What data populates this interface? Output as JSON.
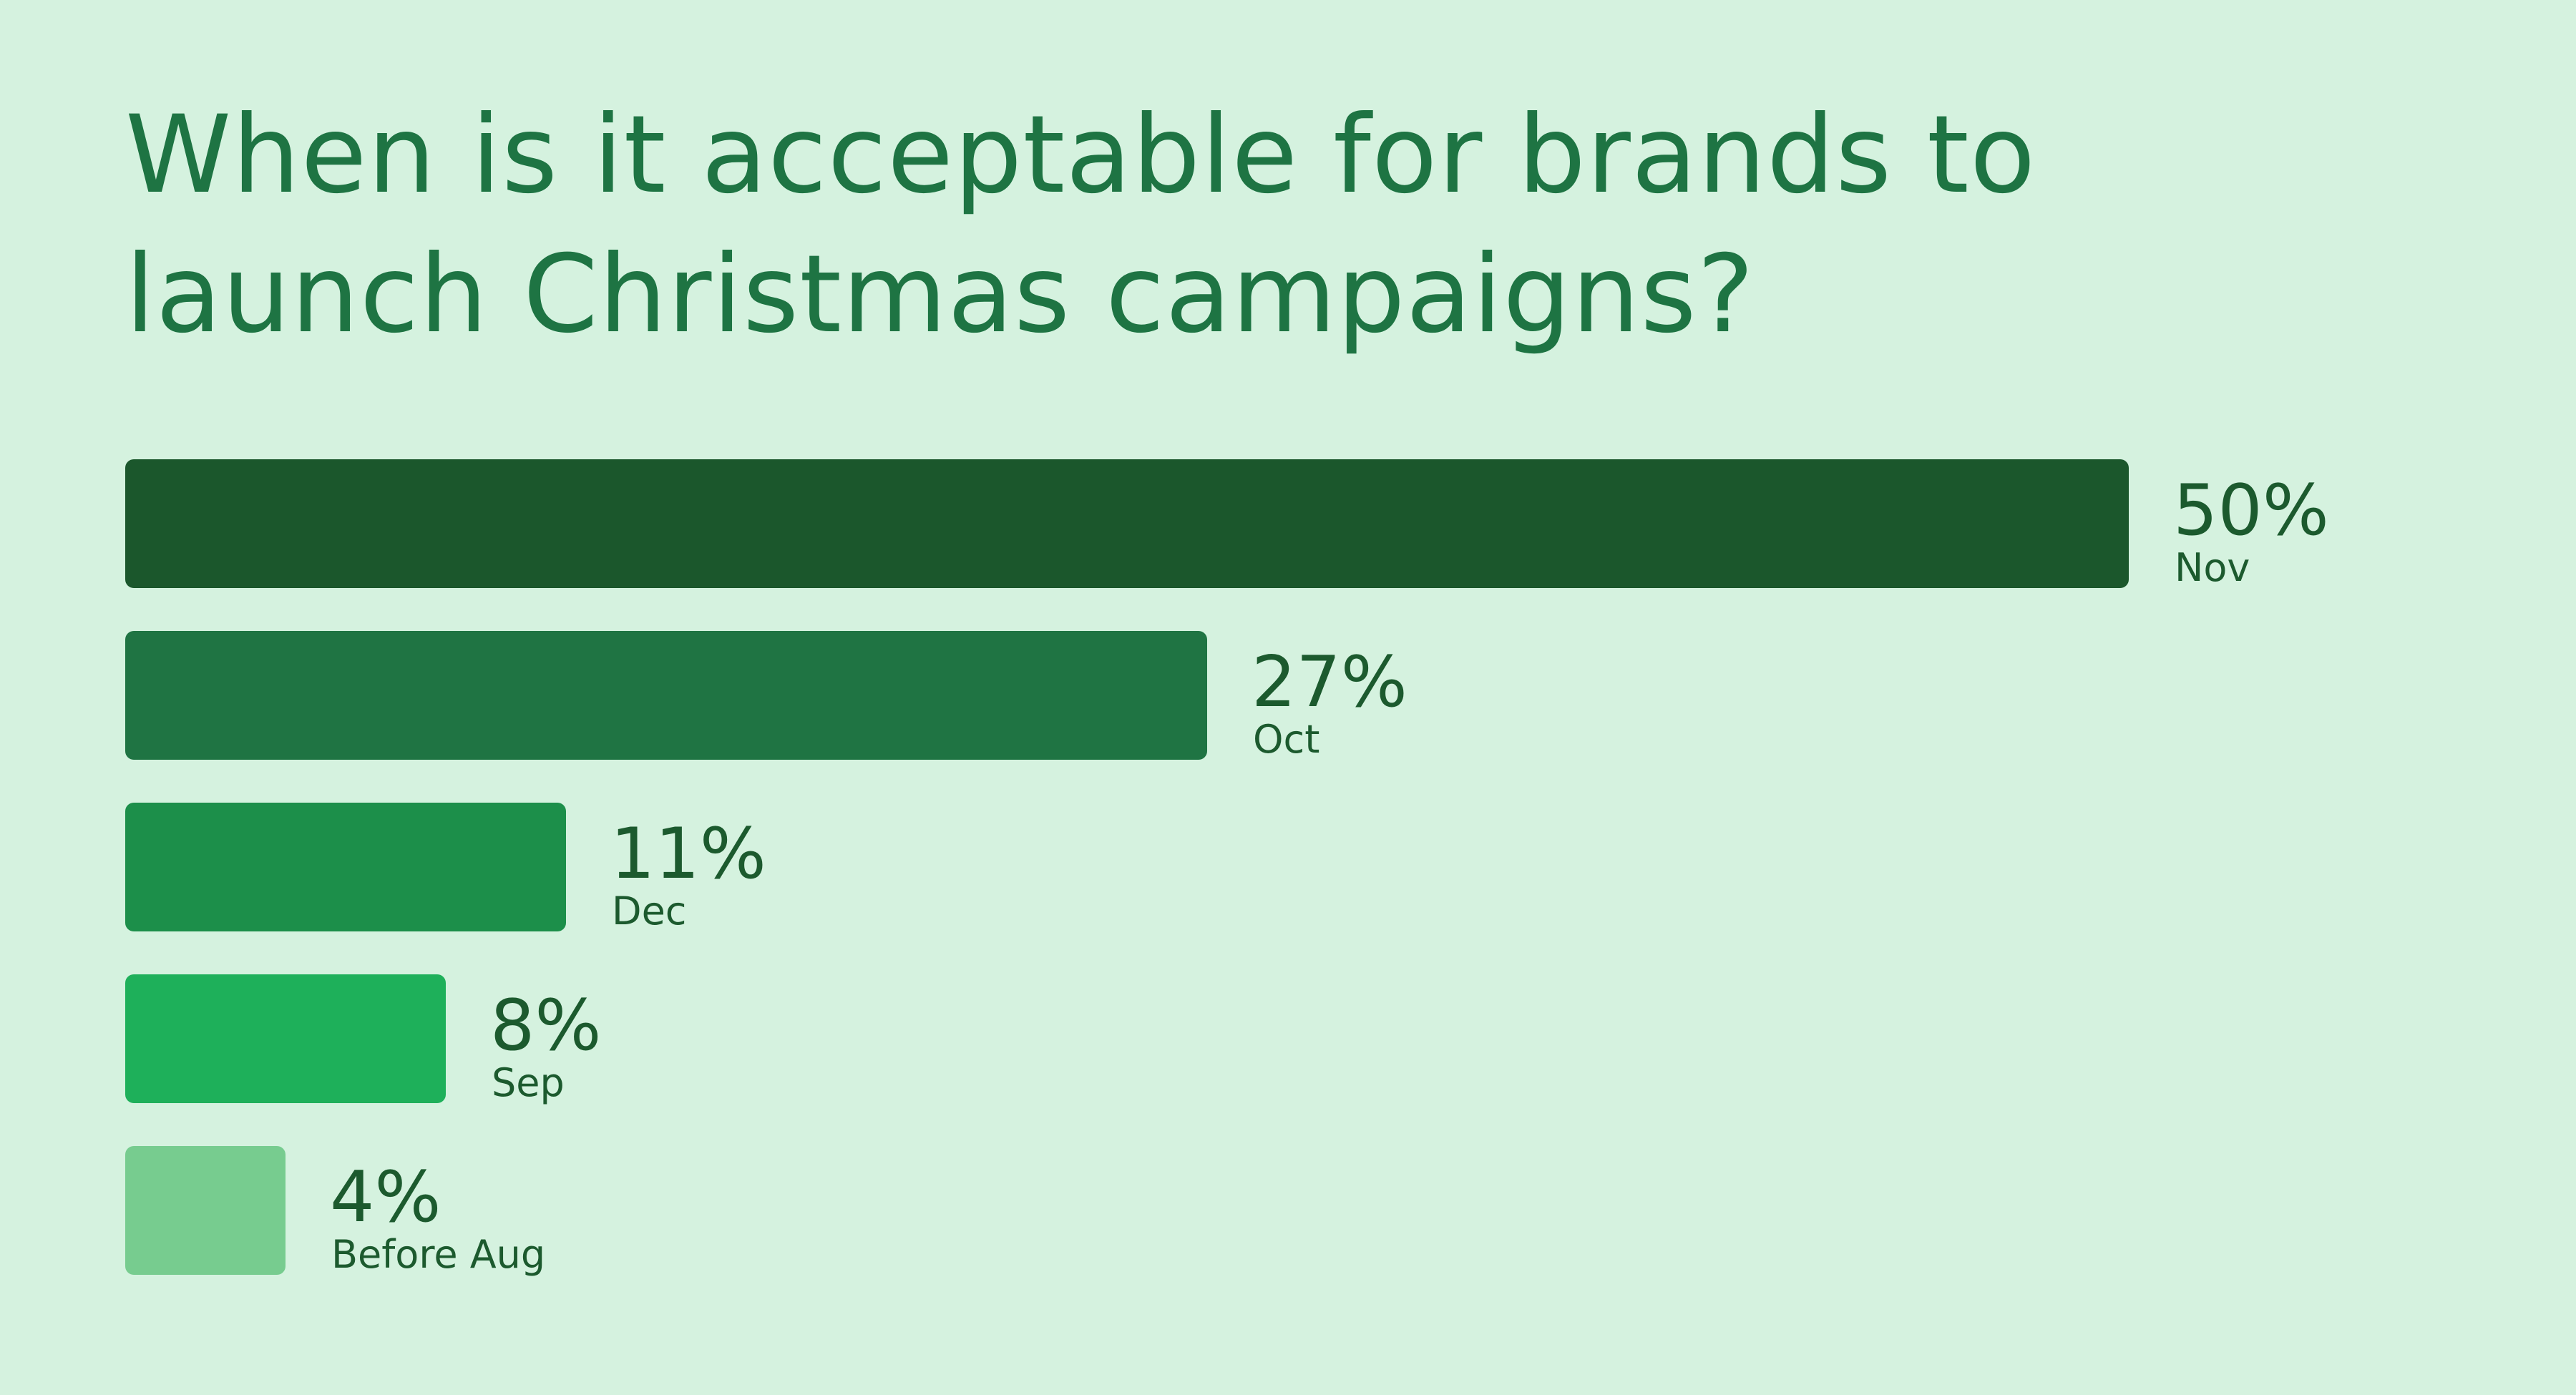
{
  "chart_data": {
    "type": "bar",
    "orientation": "horizontal",
    "title": "When is it acceptable for brands to launch Christmas campaigns?",
    "categories": [
      "Nov",
      "Oct",
      "Dec",
      "Sep",
      "Before Aug"
    ],
    "values": [
      50,
      27,
      11,
      8,
      4
    ],
    "value_labels": [
      "50%",
      "27%",
      "11%",
      "8%",
      "4%"
    ],
    "unit": "%",
    "bar_colors": [
      "#1b572c",
      "#1f7443",
      "#1c8f4a",
      "#1eb05a",
      "#77cc8f"
    ],
    "label_color": "#1c5a2e",
    "title_color": "#1e7443",
    "background_color": "#d5f2df",
    "grid": false,
    "axes_visible": false,
    "legend": "none"
  }
}
